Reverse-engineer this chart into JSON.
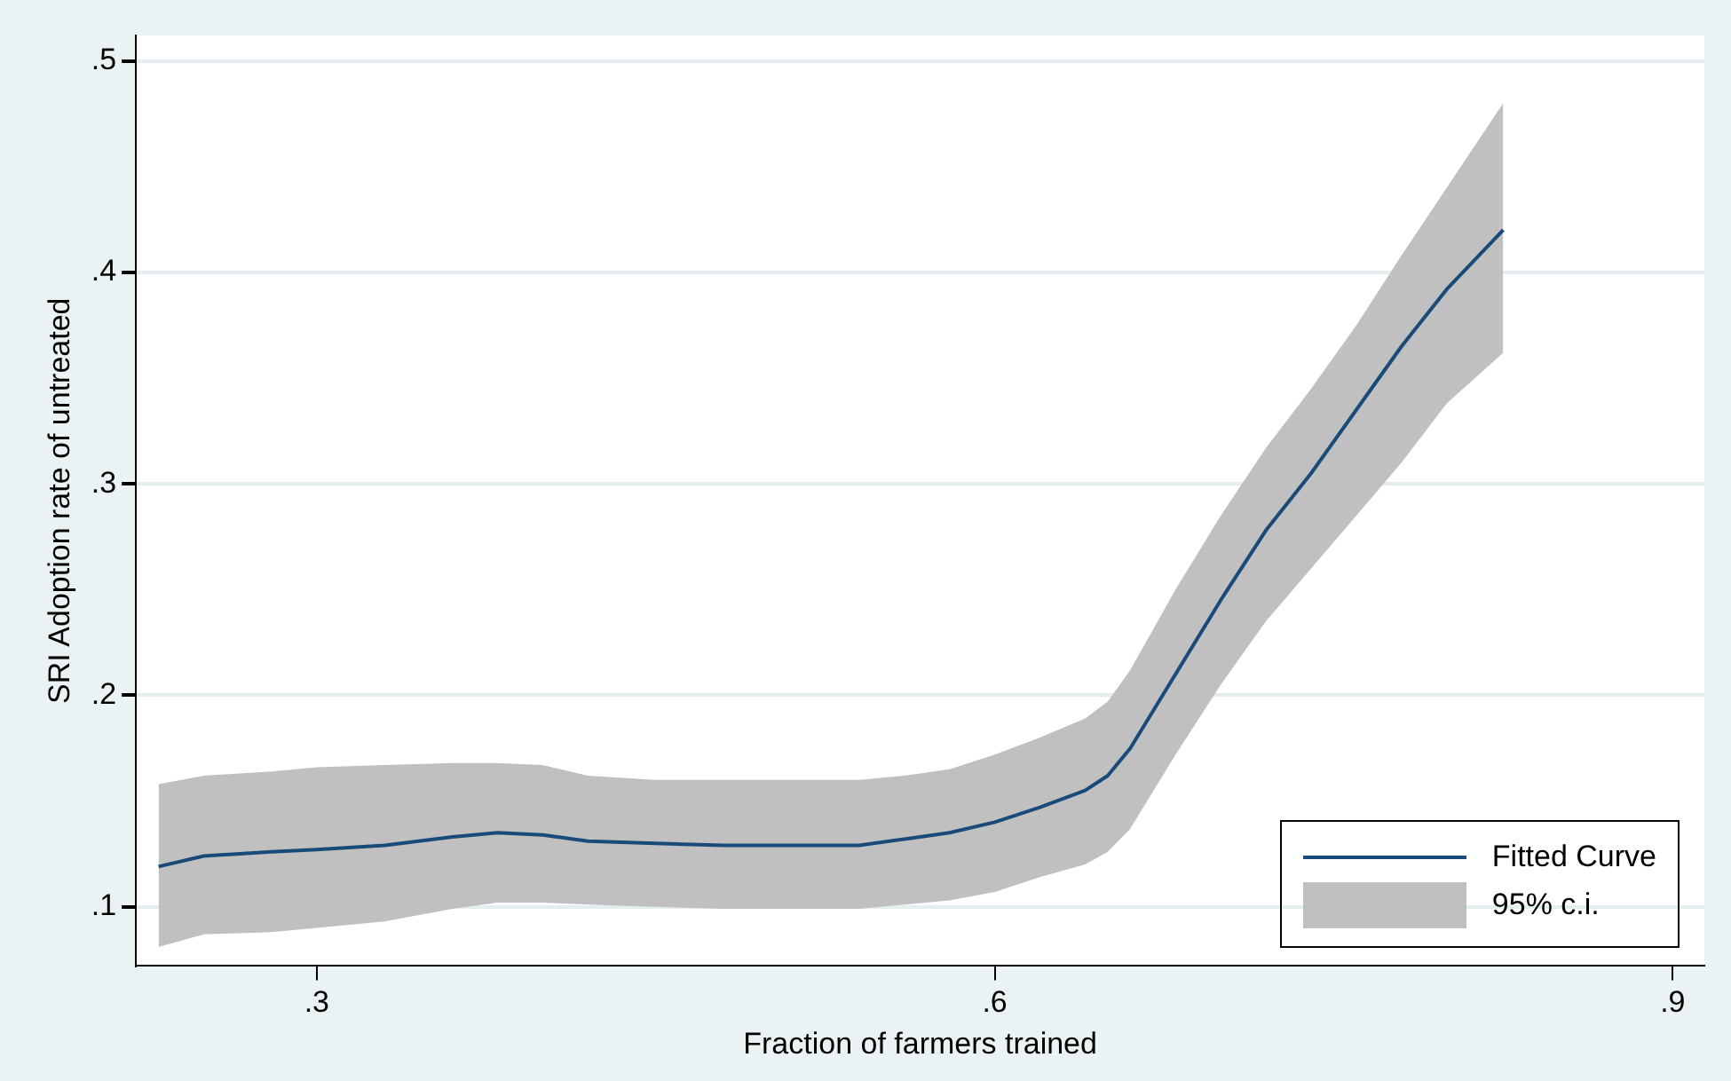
{
  "chart_data": {
    "type": "line",
    "xlabel": "Fraction of farmers trained",
    "ylabel": "SRI Adoption rate of untreated",
    "x": [
      0.23,
      0.25,
      0.28,
      0.3,
      0.33,
      0.36,
      0.38,
      0.4,
      0.42,
      0.45,
      0.48,
      0.51,
      0.54,
      0.56,
      0.58,
      0.6,
      0.62,
      0.64,
      0.65,
      0.66,
      0.68,
      0.7,
      0.72,
      0.74,
      0.76,
      0.78,
      0.8,
      0.825
    ],
    "series": [
      {
        "name": "Fitted Curve",
        "color": "#1a4a7a",
        "values": [
          0.119,
          0.124,
          0.126,
          0.127,
          0.129,
          0.133,
          0.135,
          0.134,
          0.131,
          0.13,
          0.129,
          0.129,
          0.129,
          0.132,
          0.135,
          0.14,
          0.147,
          0.155,
          0.162,
          0.175,
          0.21,
          0.245,
          0.278,
          0.305,
          0.335,
          0.365,
          0.392,
          0.42
        ],
        "lower": [
          0.081,
          0.087,
          0.088,
          0.09,
          0.093,
          0.099,
          0.102,
          0.102,
          0.101,
          0.1,
          0.099,
          0.099,
          0.099,
          0.101,
          0.103,
          0.107,
          0.114,
          0.12,
          0.126,
          0.137,
          0.172,
          0.205,
          0.235,
          0.26,
          0.285,
          0.31,
          0.338,
          0.362
        ],
        "upper": [
          0.158,
          0.162,
          0.164,
          0.166,
          0.167,
          0.168,
          0.168,
          0.167,
          0.162,
          0.16,
          0.16,
          0.16,
          0.16,
          0.162,
          0.165,
          0.172,
          0.18,
          0.189,
          0.197,
          0.212,
          0.25,
          0.285,
          0.317,
          0.345,
          0.375,
          0.408,
          0.44,
          0.48
        ]
      }
    ],
    "annotations": [
      "95% c.i."
    ],
    "xlim": [
      0.22,
      0.914
    ],
    "xticks": [
      {
        "value": 0.3,
        "label": ".3"
      },
      {
        "value": 0.6,
        "label": ".6"
      },
      {
        "value": 0.9,
        "label": ".9"
      }
    ],
    "ylim": [
      0.072,
      0.512
    ],
    "yticks": [
      {
        "value": 0.1,
        "label": ".1"
      },
      {
        "value": 0.2,
        "label": ".2"
      },
      {
        "value": 0.3,
        "label": ".3"
      },
      {
        "value": 0.4,
        "label": ".4"
      },
      {
        "value": 0.5,
        "label": ".5"
      }
    ],
    "grid": "y",
    "legend": "bottom right",
    "marker": "none",
    "line_style": "solid"
  }
}
